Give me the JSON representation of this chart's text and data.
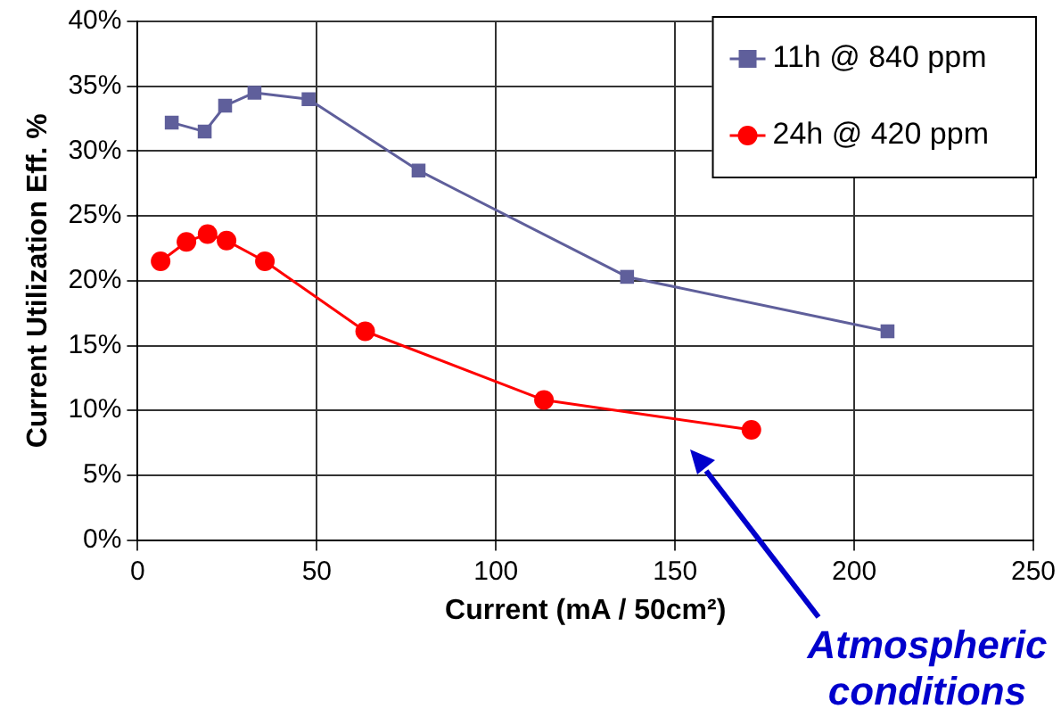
{
  "chart_data": {
    "type": "line",
    "xlabel": "Current (mA / 50cm²)",
    "ylabel": "Current Utilization Eff. %",
    "series": [
      {
        "name": "11h @ 840 ppm",
        "color": "#5f5f9b",
        "marker": "square",
        "x": [
          9.5,
          18.7,
          24.4,
          32.6,
          47.7,
          78.4,
          136.6,
          209.3
        ],
        "values": [
          32.2,
          31.5,
          33.5,
          34.5,
          34.0,
          28.5,
          20.3,
          16.1
        ]
      },
      {
        "name": "24h @ 420 ppm",
        "color": "#ff0000",
        "marker": "circle",
        "x": [
          6.4,
          13.6,
          19.5,
          24.8,
          35.5,
          63.5,
          113.4,
          171.3
        ],
        "values": [
          21.5,
          23.0,
          23.6,
          23.1,
          21.5,
          16.1,
          10.8,
          8.5
        ]
      }
    ],
    "xlim": [
      0,
      250
    ],
    "xticks": [
      0,
      50,
      100,
      150,
      200,
      250
    ],
    "ylim": [
      0,
      40
    ],
    "yticks": [
      {
        "value": 0,
        "label": "0%"
      },
      {
        "value": 5,
        "label": "5%"
      },
      {
        "value": 10,
        "label": "10%"
      },
      {
        "value": 15,
        "label": "15%"
      },
      {
        "value": 20,
        "label": "20%"
      },
      {
        "value": 25,
        "label": "25%"
      },
      {
        "value": 30,
        "label": "30%"
      },
      {
        "value": 35,
        "label": "35%"
      },
      {
        "value": 40,
        "label": "40%"
      }
    ],
    "grid": true,
    "legend": "top right",
    "annotations": [
      "Atmospheric conditions"
    ]
  }
}
